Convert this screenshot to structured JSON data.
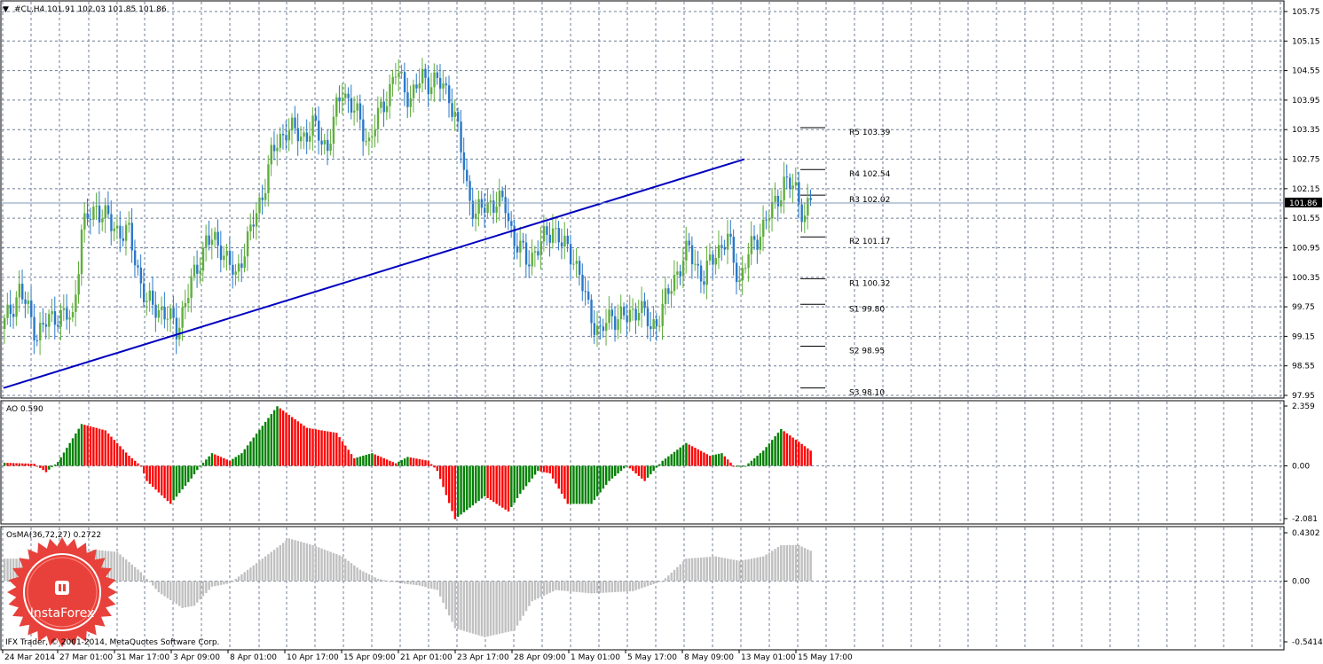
{
  "window": {
    "symbol_line": "#CL,H4  101.91 102.03 101.85 101.86",
    "footer": "IFX Trader, © 2001-2014, MetaQuotes Software Corp.",
    "logo_text": "InstaForex"
  },
  "chart_data": [
    {
      "type": "candlestick",
      "title": "#CL,H4  101.91 102.03 101.85 101.86",
      "ylim": [
        97.95,
        105.75
      ],
      "y_ticks": [
        "105.75",
        "105.15",
        "104.55",
        "103.95",
        "103.35",
        "102.75",
        "102.15",
        "101.55",
        "100.95",
        "100.35",
        "99.75",
        "99.15",
        "98.55",
        "97.95"
      ],
      "last_price": "101.86",
      "x_ticks": [
        "24 Mar 2014",
        "27 Mar 01:00",
        "31 Mar 17:00",
        "3 Apr 09:00",
        "8 Apr 01:00",
        "10 Apr 17:00",
        "15 Apr 09:00",
        "21 Apr 01:00",
        "23 Apr 17:00",
        "28 Apr 09:00",
        "1 May 01:00",
        "5 May 17:00",
        "8 May 09:00",
        "13 May 01:00",
        "15 May 17:00"
      ],
      "colors": {
        "bull": "#5fae3b",
        "bear": "#2a78c8",
        "trendline": "#0000c0"
      },
      "close_path": [
        [
          0,
          99.4
        ],
        [
          5,
          100.1
        ],
        [
          11,
          99.2
        ],
        [
          17,
          99.6
        ],
        [
          23,
          99.5
        ],
        [
          26,
          101.3
        ],
        [
          31,
          101.8
        ],
        [
          36,
          101.4
        ],
        [
          42,
          101.2
        ],
        [
          48,
          99.8
        ],
        [
          53,
          99.7
        ],
        [
          58,
          99.3
        ],
        [
          63,
          100.2
        ],
        [
          68,
          101.1
        ],
        [
          73,
          101.0
        ],
        [
          78,
          100.3
        ],
        [
          80,
          100.8
        ],
        [
          85,
          101.6
        ],
        [
          90,
          102.8
        ],
        [
          95,
          103.4
        ],
        [
          100,
          103.2
        ],
        [
          104,
          103.4
        ],
        [
          109,
          103.0
        ],
        [
          114,
          104.2
        ],
        [
          119,
          103.6
        ],
        [
          123,
          103.1
        ],
        [
          128,
          103.9
        ],
        [
          132,
          104.5
        ],
        [
          137,
          104.0
        ],
        [
          141,
          104.4
        ],
        [
          146,
          104.3
        ],
        [
          150,
          104.1
        ],
        [
          153,
          103.3
        ],
        [
          156,
          102.2
        ],
        [
          159,
          101.6
        ],
        [
          164,
          101.9
        ],
        [
          169,
          101.8
        ],
        [
          172,
          101.1
        ],
        [
          176,
          100.7
        ],
        [
          181,
          101.0
        ],
        [
          185,
          101.4
        ],
        [
          188,
          101.0
        ],
        [
          192,
          100.8
        ],
        [
          197,
          99.7
        ],
        [
          201,
          99.2
        ],
        [
          205,
          99.6
        ],
        [
          210,
          99.5
        ],
        [
          214,
          99.8
        ],
        [
          218,
          99.3
        ],
        [
          222,
          99.7
        ],
        [
          227,
          100.5
        ],
        [
          231,
          100.9
        ],
        [
          236,
          100.3
        ],
        [
          240,
          100.9
        ],
        [
          244,
          101.1
        ],
        [
          248,
          100.3
        ],
        [
          251,
          100.8
        ],
        [
          255,
          101.3
        ],
        [
          259,
          101.7
        ],
        [
          263,
          102.3
        ],
        [
          267,
          102.1
        ],
        [
          270,
          101.6
        ],
        [
          272,
          101.9
        ]
      ],
      "pivot_levels": [
        {
          "label": "R5 103.39",
          "value": 103.39
        },
        {
          "label": "R4 102.54",
          "value": 102.54
        },
        {
          "label": "R3 102.02",
          "value": 102.02
        },
        {
          "label": "R2 101.17",
          "value": 101.17
        },
        {
          "label": "R1 100.32",
          "value": 100.32
        },
        {
          "label": "S1 99.80",
          "value": 99.8
        },
        {
          "label": "S2 98.95",
          "value": 98.95
        },
        {
          "label": "S3 98.10",
          "value": 98.1
        }
      ],
      "trendline": {
        "start": [
          0,
          98.1
        ],
        "end": [
          250,
          102.75
        ]
      }
    },
    {
      "type": "bar",
      "title": "AO 0.590",
      "ylim": [
        -2.081,
        2.359
      ],
      "y_ticks": [
        "2.359",
        "0.00",
        "-2.081"
      ],
      "colors": {
        "up": "#008000",
        "down": "#ff0000"
      },
      "keyframes": [
        [
          0,
          0.12
        ],
        [
          10,
          0.08
        ],
        [
          14,
          -0.25
        ],
        [
          18,
          0.15
        ],
        [
          26,
          1.65
        ],
        [
          34,
          1.4
        ],
        [
          42,
          0.4
        ],
        [
          46,
          0.0
        ],
        [
          48,
          -0.6
        ],
        [
          56,
          -1.5
        ],
        [
          63,
          -0.5
        ],
        [
          66,
          0.0
        ],
        [
          70,
          0.5
        ],
        [
          76,
          0.2
        ],
        [
          80,
          0.5
        ],
        [
          92,
          2.35
        ],
        [
          102,
          1.5
        ],
        [
          112,
          1.3
        ],
        [
          118,
          0.3
        ],
        [
          124,
          0.5
        ],
        [
          132,
          0.1
        ],
        [
          136,
          0.35
        ],
        [
          143,
          0.2
        ],
        [
          146,
          -0.2
        ],
        [
          152,
          -2.1
        ],
        [
          162,
          -1.2
        ],
        [
          170,
          -1.8
        ],
        [
          174,
          -1.1
        ],
        [
          180,
          -0.2
        ],
        [
          184,
          -0.3
        ],
        [
          190,
          -1.5
        ],
        [
          198,
          -1.5
        ],
        [
          204,
          -0.6
        ],
        [
          210,
          0.0
        ],
        [
          216,
          -0.6
        ],
        [
          222,
          0.2
        ],
        [
          230,
          0.9
        ],
        [
          238,
          0.4
        ],
        [
          242,
          0.5
        ],
        [
          246,
          0.0
        ],
        [
          250,
          0.0
        ],
        [
          256,
          0.6
        ],
        [
          262,
          1.45
        ],
        [
          268,
          0.95
        ],
        [
          272,
          0.6
        ]
      ]
    },
    {
      "type": "bar",
      "title": "OsMA(36,72,27) 0.2722",
      "ylim": [
        -0.5414,
        0.4302
      ],
      "y_ticks": [
        "0.4302",
        "0.00",
        "-0.5414"
      ],
      "colors": {
        "bars": "#c0c0c0"
      },
      "keyframes": [
        [
          0,
          0.2
        ],
        [
          10,
          0.2
        ],
        [
          20,
          0.18
        ],
        [
          30,
          0.28
        ],
        [
          38,
          0.26
        ],
        [
          46,
          0.08
        ],
        [
          52,
          -0.1
        ],
        [
          60,
          -0.24
        ],
        [
          64,
          -0.22
        ],
        [
          70,
          -0.05
        ],
        [
          76,
          -0.02
        ],
        [
          82,
          0.1
        ],
        [
          96,
          0.38
        ],
        [
          104,
          0.32
        ],
        [
          114,
          0.22
        ],
        [
          120,
          0.1
        ],
        [
          126,
          0.02
        ],
        [
          134,
          -0.02
        ],
        [
          140,
          -0.04
        ],
        [
          146,
          -0.08
        ],
        [
          152,
          -0.42
        ],
        [
          162,
          -0.5
        ],
        [
          172,
          -0.44
        ],
        [
          178,
          -0.18
        ],
        [
          186,
          -0.08
        ],
        [
          198,
          -0.11
        ],
        [
          212,
          -0.09
        ],
        [
          222,
          0.0
        ],
        [
          230,
          0.2
        ],
        [
          240,
          0.22
        ],
        [
          248,
          0.18
        ],
        [
          256,
          0.22
        ],
        [
          262,
          0.32
        ],
        [
          268,
          0.32
        ],
        [
          272,
          0.27
        ]
      ]
    }
  ]
}
